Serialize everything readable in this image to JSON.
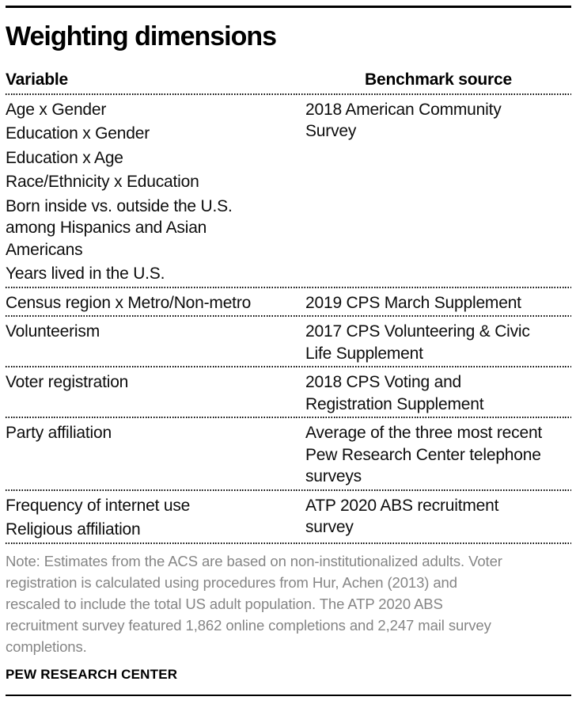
{
  "header": {
    "title": "Weighting dimensions"
  },
  "table": {
    "col1_header": "Variable",
    "col2_header": "Benchmark source",
    "rows": [
      {
        "variables": [
          "Age x Gender",
          "Education x Gender",
          "Education x Age",
          "Race/Ethnicity x Education",
          "Born inside vs. outside the U.S.\namong Hispanics and Asian\nAmericans",
          "Years lived in the U.S."
        ],
        "benchmark": "2018 American Community\nSurvey"
      },
      {
        "variables": [
          "Census region x Metro/Non-metro"
        ],
        "benchmark": "2019 CPS March Supplement"
      },
      {
        "variables": [
          "Volunteerism"
        ],
        "benchmark": "2017 CPS Volunteering & Civic\nLife Supplement"
      },
      {
        "variables": [
          "Voter registration"
        ],
        "benchmark": "2018 CPS Voting and\nRegistration Supplement"
      },
      {
        "variables": [
          "Party affiliation"
        ],
        "benchmark": "Average of the three most recent\nPew Research Center telephone\nsurveys"
      },
      {
        "variables": [
          "Frequency of internet use",
          "Religious affiliation"
        ],
        "benchmark": "ATP 2020 ABS recruitment\nsurvey"
      }
    ]
  },
  "chart_data": {
    "type": "table",
    "title": "Weighting dimensions",
    "columns": [
      "Variable",
      "Benchmark source"
    ],
    "rows": [
      {
        "variables": [
          "Age x Gender",
          "Education x Gender",
          "Education x Age",
          "Race/Ethnicity x Education",
          "Born inside vs. outside the U.S. among Hispanics and Asian Americans",
          "Years lived in the U.S."
        ],
        "benchmark_source": "2018 American Community Survey"
      },
      {
        "variables": [
          "Census region x Metro/Non-metro"
        ],
        "benchmark_source": "2019 CPS March Supplement"
      },
      {
        "variables": [
          "Volunteerism"
        ],
        "benchmark_source": "2017 CPS Volunteering & Civic Life Supplement"
      },
      {
        "variables": [
          "Voter registration"
        ],
        "benchmark_source": "2018 CPS Voting and Registration Supplement"
      },
      {
        "variables": [
          "Party affiliation"
        ],
        "benchmark_source": "Average of the three most recent Pew Research Center telephone surveys"
      },
      {
        "variables": [
          "Frequency of internet use",
          "Religious affiliation"
        ],
        "benchmark_source": "ATP 2020 ABS recruitment survey"
      }
    ]
  },
  "footer": {
    "note": "Note: Estimates from the ACS are based on non-institutionalized adults. Voter\nregistration is calculated using procedures from Hur, Achen (2013) and\nrescaled to include the total US adult population. The ATP 2020 ABS\nrecruitment survey featured 1,862 online completions and 2,247 mail survey\ncompletions.",
    "brand": "PEW RESEARCH CENTER"
  },
  "colors": {
    "text": "#0d0d0d",
    "note_gray": "#858585",
    "rule": "#000000"
  }
}
